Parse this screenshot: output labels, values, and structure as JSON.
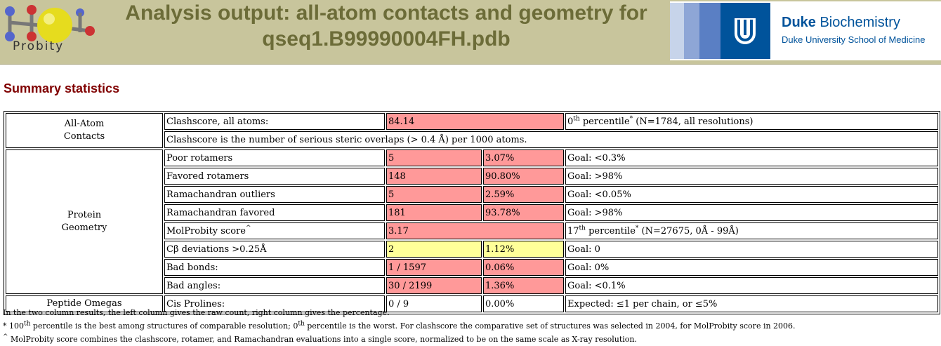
{
  "header": {
    "logo_text": "Probity",
    "title_line1": "Analysis output: all-atom contacts and geometry for",
    "title_line2": "qseq1.B99990004FH.pdb",
    "duke_name": "Duke",
    "duke_dept": "Biochemistry",
    "duke_school": "Duke University School of Medicine",
    "duke_blue": "#00539b",
    "banner_color": "#c8c59c",
    "title_color": "#6c6c38"
  },
  "summary": {
    "heading": "Summary statistics",
    "colors": {
      "bad": "#ff9999",
      "warn": "#ffff99"
    },
    "all_atom": {
      "category_l1": "All-Atom",
      "category_l2": "Contacts",
      "clashscore_label": "Clashscore, all atoms:",
      "clashscore_value": "84.14",
      "percentile_num": "0",
      "percentile_sup": "th",
      "percentile_text": " percentile",
      "percentile_star": "*",
      "percentile_detail": " (N=1784, all resolutions)",
      "clash_note": "Clashscore is the number of serious steric overlaps (> 0.4 Å) per 1000 atoms."
    },
    "geometry": {
      "category_l1": "Protein",
      "category_l2": "Geometry",
      "rows": [
        {
          "label": "Poor rotamers",
          "v1": "5",
          "v2": "3.07%",
          "goal": "Goal: <0.3%"
        },
        {
          "label": "Favored rotamers",
          "v1": "148",
          "v2": "90.80%",
          "goal": "Goal: >98%"
        },
        {
          "label": "Ramachandran outliers",
          "v1": "5",
          "v2": "2.59%",
          "goal": "Goal: <0.05%"
        },
        {
          "label": "Ramachandran favored",
          "v1": "181",
          "v2": "93.78%",
          "goal": "Goal: >98%"
        }
      ],
      "molprobity": {
        "label": "MolProbity score",
        "label_sup": "^",
        "value": "3.17",
        "percentile_num": "17",
        "percentile_sup": "th",
        "percentile_text": " percentile",
        "percentile_star": "*",
        "percentile_detail": " (N=27675, 0Å - 99Å)"
      },
      "rows2": [
        {
          "label": "Cβ deviations >0.25Å",
          "v1": "2",
          "v2": "1.12%",
          "goal": "Goal: 0"
        },
        {
          "label": "Bad bonds:",
          "v1": "1 / 1597",
          "v2": "0.06%",
          "goal": "Goal: 0%"
        },
        {
          "label": "Bad angles:",
          "v1": "30 / 2199",
          "v2": "1.36%",
          "goal": "Goal: <0.1%"
        }
      ]
    },
    "omega": {
      "category": "Peptide Omegas",
      "label": "Cis Prolines:",
      "v1": "0 / 9",
      "v2": "0.00%",
      "goal": "Expected: ≤1 per chain, or ≤5%"
    }
  },
  "notes": {
    "n1": "In the two column results, the left column gives the raw count, right column gives the percentage.",
    "n2_a": "* 100",
    "n2_sup1": "th",
    "n2_b": " percentile is the best among structures of comparable resolution; 0",
    "n2_sup2": "th",
    "n2_c": " percentile is the worst. For clashscore the comparative set of structures was selected in 2004, for MolProbity score in 2006.",
    "n3_sup": "^",
    "n3": " MolProbity score combines the clashscore, rotamer, and Ramachandran evaluations into a single score, normalized to be on the same scale as X-ray resolution."
  }
}
